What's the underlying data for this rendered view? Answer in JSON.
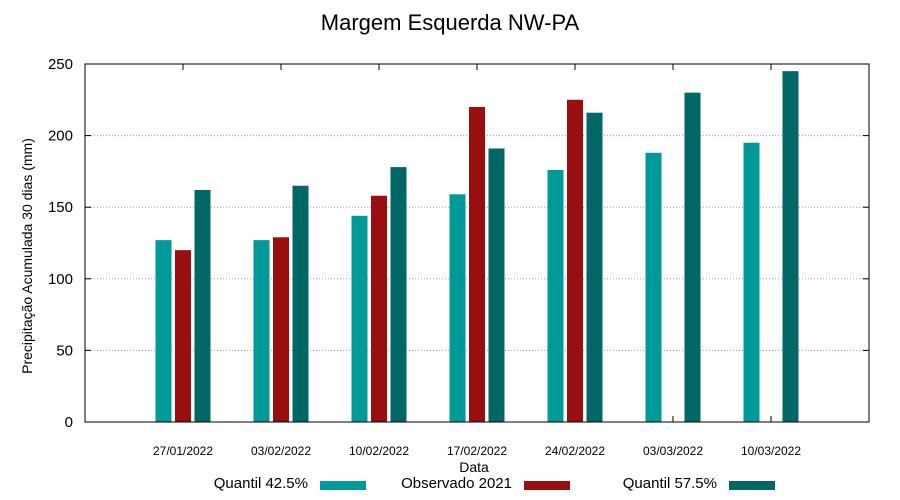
{
  "chart_data": {
    "type": "bar",
    "title": "Margem Esquerda NW-PA",
    "xlabel": "Data",
    "ylabel": "Precipitação Acumulada 30 dias (mm)",
    "ylim": [
      0,
      250
    ],
    "yticks": [
      0,
      50,
      100,
      150,
      200,
      250
    ],
    "grid": true,
    "legend_position": "bottom",
    "categories": [
      "27/01/2022",
      "03/02/2022",
      "10/02/2022",
      "17/02/2022",
      "24/02/2022",
      "03/03/2022",
      "10/03/2022"
    ],
    "series": [
      {
        "name": "Quantil 42.5%",
        "color": "#009999",
        "values": [
          127,
          127,
          144,
          159,
          176,
          188,
          195
        ]
      },
      {
        "name": "Observado 2021",
        "color": "#990e0e",
        "values": [
          120,
          129,
          158,
          220,
          225,
          null,
          null
        ]
      },
      {
        "name": "Quantil 57.5%",
        "color": "#006666",
        "values": [
          162,
          165,
          178,
          191,
          216,
          230,
          245
        ]
      }
    ]
  }
}
